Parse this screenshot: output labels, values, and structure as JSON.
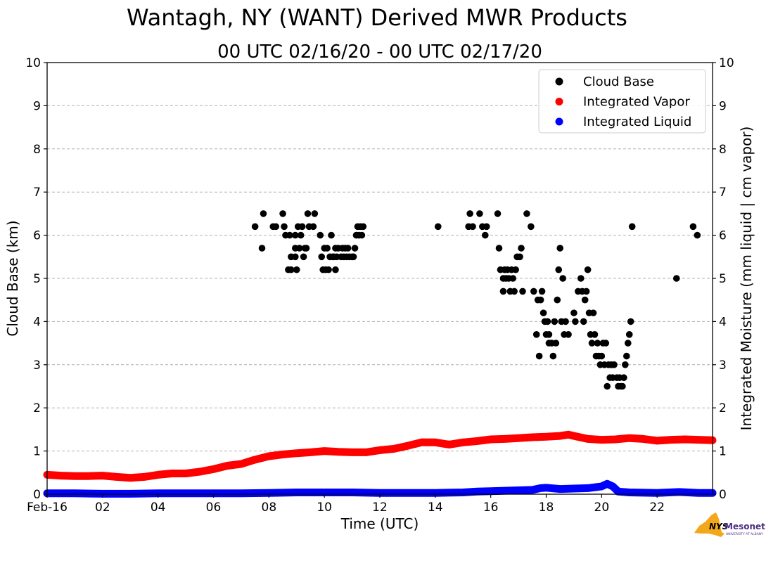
{
  "chart_data": {
    "type": "scatter",
    "title": "Wantagh, NY (WANT) Derived MWR Products",
    "subtitle": "00 UTC 02/16/20 - 00 UTC 02/17/20",
    "xlabel": "Time (UTC)",
    "ylabel": "Cloud Base (km)",
    "y2label": "Integrated Moisture (mm liquid | cm vapor)",
    "xlim": [
      0,
      24
    ],
    "ylim": [
      0,
      10
    ],
    "y2lim": [
      0,
      10
    ],
    "grid": true,
    "legend_position": "top-right",
    "x_ticks": [
      0,
      2,
      4,
      6,
      8,
      10,
      12,
      14,
      16,
      18,
      20,
      22
    ],
    "x_tick_labels": [
      "Feb-16",
      "02",
      "04",
      "06",
      "08",
      "10",
      "12",
      "14",
      "16",
      "18",
      "20",
      "22"
    ],
    "y_ticks": [
      0,
      1,
      2,
      3,
      4,
      5,
      6,
      7,
      8,
      9,
      10
    ],
    "y_tick_labels": [
      "0",
      "1",
      "2",
      "3",
      "4",
      "5",
      "6",
      "7",
      "8",
      "9",
      "10"
    ],
    "y2_ticks": [
      0,
      1,
      2,
      3,
      4,
      5,
      6,
      7,
      8,
      9,
      10
    ],
    "y2_tick_labels": [
      "0",
      "1",
      "2",
      "3",
      "4",
      "5",
      "6",
      "7",
      "8",
      "9",
      "10"
    ],
    "series": [
      {
        "name": "Cloud Base",
        "color": "#000000",
        "axis": "left",
        "points": [
          [
            7.5,
            6.2
          ],
          [
            7.75,
            5.7
          ],
          [
            7.8,
            6.5
          ],
          [
            8.15,
            6.2
          ],
          [
            8.25,
            6.2
          ],
          [
            8.5,
            6.5
          ],
          [
            8.55,
            6.2
          ],
          [
            8.6,
            6.0
          ],
          [
            8.7,
            5.2
          ],
          [
            8.75,
            6.0
          ],
          [
            8.8,
            5.5
          ],
          [
            8.8,
            5.2
          ],
          [
            8.95,
            6.0
          ],
          [
            8.95,
            5.7
          ],
          [
            8.95,
            5.5
          ],
          [
            9.0,
            5.2
          ],
          [
            9.05,
            6.2
          ],
          [
            9.1,
            5.7
          ],
          [
            9.15,
            6.0
          ],
          [
            9.2,
            6.2
          ],
          [
            9.25,
            5.5
          ],
          [
            9.3,
            5.7
          ],
          [
            9.35,
            5.7
          ],
          [
            9.4,
            6.5
          ],
          [
            9.45,
            6.2
          ],
          [
            9.6,
            6.2
          ],
          [
            9.65,
            6.5
          ],
          [
            9.85,
            6.0
          ],
          [
            9.9,
            5.5
          ],
          [
            9.95,
            5.2
          ],
          [
            10.0,
            5.7
          ],
          [
            10.05,
            5.2
          ],
          [
            10.1,
            5.7
          ],
          [
            10.15,
            5.2
          ],
          [
            10.2,
            5.5
          ],
          [
            10.25,
            6.0
          ],
          [
            10.3,
            5.5
          ],
          [
            10.35,
            5.5
          ],
          [
            10.4,
            5.7
          ],
          [
            10.4,
            5.2
          ],
          [
            10.45,
            5.5
          ],
          [
            10.5,
            5.7
          ],
          [
            10.6,
            5.5
          ],
          [
            10.65,
            5.7
          ],
          [
            10.7,
            5.5
          ],
          [
            10.75,
            5.7
          ],
          [
            10.8,
            5.5
          ],
          [
            10.85,
            5.7
          ],
          [
            10.9,
            5.5
          ],
          [
            11.0,
            5.5
          ],
          [
            11.05,
            5.5
          ],
          [
            11.1,
            5.7
          ],
          [
            11.15,
            6.0
          ],
          [
            11.2,
            6.2
          ],
          [
            11.25,
            6.0
          ],
          [
            11.3,
            6.2
          ],
          [
            11.35,
            6.0
          ],
          [
            11.4,
            6.2
          ],
          [
            14.1,
            6.2
          ],
          [
            15.2,
            6.2
          ],
          [
            15.25,
            6.5
          ],
          [
            15.35,
            6.2
          ],
          [
            15.6,
            6.5
          ],
          [
            15.7,
            6.2
          ],
          [
            15.8,
            6.0
          ],
          [
            15.85,
            6.2
          ],
          [
            16.25,
            6.5
          ],
          [
            16.3,
            5.7
          ],
          [
            16.35,
            5.2
          ],
          [
            16.45,
            5.0
          ],
          [
            16.45,
            4.7
          ],
          [
            16.5,
            5.2
          ],
          [
            16.55,
            5.0
          ],
          [
            16.6,
            5.2
          ],
          [
            16.65,
            5.0
          ],
          [
            16.7,
            4.7
          ],
          [
            16.75,
            5.2
          ],
          [
            16.8,
            5.0
          ],
          [
            16.85,
            4.7
          ],
          [
            16.9,
            5.2
          ],
          [
            16.95,
            5.5
          ],
          [
            17.05,
            5.5
          ],
          [
            17.1,
            5.7
          ],
          [
            17.15,
            4.7
          ],
          [
            17.3,
            6.5
          ],
          [
            17.45,
            6.2
          ],
          [
            17.55,
            4.7
          ],
          [
            17.65,
            3.7
          ],
          [
            17.7,
            4.5
          ],
          [
            17.75,
            3.2
          ],
          [
            17.8,
            4.5
          ],
          [
            17.85,
            4.7
          ],
          [
            17.9,
            4.2
          ],
          [
            17.95,
            4.0
          ],
          [
            18.0,
            3.7
          ],
          [
            18.05,
            4.0
          ],
          [
            18.1,
            3.5
          ],
          [
            18.1,
            3.7
          ],
          [
            18.2,
            3.5
          ],
          [
            18.25,
            3.2
          ],
          [
            18.3,
            4.0
          ],
          [
            18.35,
            3.5
          ],
          [
            18.4,
            4.5
          ],
          [
            18.45,
            5.2
          ],
          [
            18.5,
            5.7
          ],
          [
            18.55,
            4.0
          ],
          [
            18.6,
            5.0
          ],
          [
            18.65,
            3.7
          ],
          [
            18.7,
            4.0
          ],
          [
            18.8,
            3.7
          ],
          [
            19.0,
            4.2
          ],
          [
            19.05,
            4.0
          ],
          [
            19.15,
            4.7
          ],
          [
            19.25,
            5.0
          ],
          [
            19.3,
            4.7
          ],
          [
            19.35,
            4.0
          ],
          [
            19.4,
            4.5
          ],
          [
            19.45,
            4.7
          ],
          [
            19.5,
            5.2
          ],
          [
            19.55,
            4.2
          ],
          [
            19.6,
            3.7
          ],
          [
            19.65,
            3.5
          ],
          [
            19.7,
            4.2
          ],
          [
            19.75,
            3.7
          ],
          [
            19.8,
            3.2
          ],
          [
            19.85,
            3.5
          ],
          [
            19.9,
            3.2
          ],
          [
            19.95,
            3.0
          ],
          [
            20.0,
            3.2
          ],
          [
            20.05,
            3.5
          ],
          [
            20.1,
            3.0
          ],
          [
            20.15,
            3.5
          ],
          [
            20.2,
            2.5
          ],
          [
            20.25,
            3.0
          ],
          [
            20.3,
            2.7
          ],
          [
            20.35,
            3.0
          ],
          [
            20.4,
            2.7
          ],
          [
            20.45,
            3.0
          ],
          [
            20.55,
            2.7
          ],
          [
            20.6,
            2.5
          ],
          [
            20.65,
            2.7
          ],
          [
            20.7,
            2.5
          ],
          [
            20.75,
            2.5
          ],
          [
            20.8,
            2.7
          ],
          [
            20.85,
            3.0
          ],
          [
            20.9,
            3.2
          ],
          [
            20.95,
            3.5
          ],
          [
            21.0,
            3.7
          ],
          [
            21.05,
            4.0
          ],
          [
            21.1,
            6.2
          ],
          [
            22.7,
            5.0
          ],
          [
            23.3,
            6.2
          ],
          [
            23.45,
            6.0
          ]
        ]
      },
      {
        "name": "Integrated Vapor",
        "color": "#ff0000",
        "axis": "right",
        "points": [
          [
            0,
            0.45
          ],
          [
            0.5,
            0.43
          ],
          [
            1,
            0.42
          ],
          [
            1.5,
            0.42
          ],
          [
            2,
            0.43
          ],
          [
            2.5,
            0.4
          ],
          [
            3,
            0.38
          ],
          [
            3.5,
            0.4
          ],
          [
            4,
            0.45
          ],
          [
            4.5,
            0.48
          ],
          [
            5,
            0.48
          ],
          [
            5.5,
            0.52
          ],
          [
            6,
            0.58
          ],
          [
            6.5,
            0.66
          ],
          [
            7,
            0.7
          ],
          [
            7.5,
            0.8
          ],
          [
            8,
            0.88
          ],
          [
            8.5,
            0.92
          ],
          [
            9,
            0.95
          ],
          [
            9.5,
            0.97
          ],
          [
            10,
            1.0
          ],
          [
            10.5,
            0.98
          ],
          [
            11,
            0.97
          ],
          [
            11.5,
            0.97
          ],
          [
            12,
            1.02
          ],
          [
            12.5,
            1.05
          ],
          [
            13,
            1.12
          ],
          [
            13.5,
            1.2
          ],
          [
            14,
            1.2
          ],
          [
            14.5,
            1.15
          ],
          [
            15,
            1.2
          ],
          [
            15.5,
            1.23
          ],
          [
            16,
            1.27
          ],
          [
            16.5,
            1.28
          ],
          [
            17,
            1.3
          ],
          [
            17.5,
            1.32
          ],
          [
            18,
            1.33
          ],
          [
            18.5,
            1.35
          ],
          [
            18.8,
            1.38
          ],
          [
            19,
            1.35
          ],
          [
            19.5,
            1.28
          ],
          [
            20,
            1.26
          ],
          [
            20.5,
            1.27
          ],
          [
            21,
            1.3
          ],
          [
            21.5,
            1.28
          ],
          [
            22,
            1.24
          ],
          [
            22.5,
            1.26
          ],
          [
            23,
            1.27
          ],
          [
            23.5,
            1.26
          ],
          [
            24,
            1.25
          ]
        ]
      },
      {
        "name": "Integrated Liquid",
        "color": "#0000ff",
        "axis": "right",
        "points": [
          [
            0,
            0.02
          ],
          [
            1,
            0.02
          ],
          [
            2,
            0.01
          ],
          [
            3,
            0.01
          ],
          [
            4,
            0.02
          ],
          [
            5,
            0.02
          ],
          [
            6,
            0.02
          ],
          [
            7,
            0.02
          ],
          [
            8,
            0.03
          ],
          [
            9,
            0.04
          ],
          [
            10,
            0.04
          ],
          [
            11,
            0.04
          ],
          [
            12,
            0.03
          ],
          [
            13,
            0.03
          ],
          [
            14,
            0.03
          ],
          [
            15,
            0.04
          ],
          [
            15.5,
            0.06
          ],
          [
            16,
            0.07
          ],
          [
            16.5,
            0.08
          ],
          [
            17,
            0.09
          ],
          [
            17.5,
            0.1
          ],
          [
            17.8,
            0.14
          ],
          [
            18,
            0.15
          ],
          [
            18.5,
            0.12
          ],
          [
            19,
            0.13
          ],
          [
            19.5,
            0.14
          ],
          [
            20,
            0.18
          ],
          [
            20.2,
            0.24
          ],
          [
            20.4,
            0.18
          ],
          [
            20.6,
            0.06
          ],
          [
            21,
            0.04
          ],
          [
            22,
            0.03
          ],
          [
            22.8,
            0.05
          ],
          [
            23.5,
            0.03
          ],
          [
            24,
            0.03
          ]
        ]
      }
    ]
  },
  "logo": {
    "nys": "NYS",
    "mesonet": "Mesonet",
    "tagline": "UNIVERSITY AT ALBANY",
    "color_nys": "#f3a81c",
    "color_mesonet": "#4b2e83"
  }
}
